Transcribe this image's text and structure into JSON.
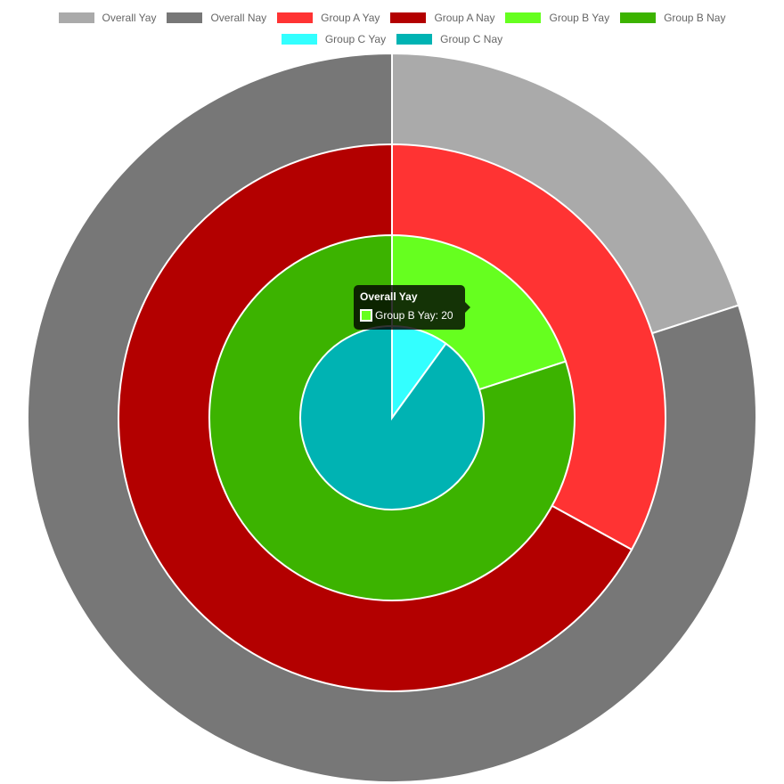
{
  "chart_data": {
    "type": "pie",
    "legend_position": "top",
    "legend": [
      {
        "label": "Overall Yay",
        "color": "#aaaaaa"
      },
      {
        "label": "Overall Nay",
        "color": "#777777"
      },
      {
        "label": "Group A Yay",
        "color": "#ff3333"
      },
      {
        "label": "Group A Nay",
        "color": "#b30000"
      },
      {
        "label": "Group B Yay",
        "color": "#66ff1f"
      },
      {
        "label": "Group B Nay",
        "color": "#3cb300"
      },
      {
        "label": "Group C Yay",
        "color": "#33ffff"
      },
      {
        "label": "Group C Nay",
        "color": "#00b3b3"
      }
    ],
    "rings": [
      {
        "values": [
          20,
          80
        ],
        "colors": [
          "#aaaaaa",
          "#777777"
        ],
        "labels": [
          "Overall Yay",
          "Overall Nay"
        ]
      },
      {
        "values": [
          33,
          67
        ],
        "colors": [
          "#ff3333",
          "#b30000"
        ],
        "labels": [
          "Group A Yay",
          "Group A Nay"
        ]
      },
      {
        "values": [
          20,
          80
        ],
        "colors": [
          "#66ff1f",
          "#3cb300"
        ],
        "labels": [
          "Group B Yay",
          "Group B Nay"
        ]
      },
      {
        "values": [
          10,
          90
        ],
        "colors": [
          "#33ffff",
          "#00b3b3"
        ],
        "labels": [
          "Group C Yay",
          "Group C Nay"
        ]
      }
    ]
  },
  "tooltip": {
    "title": "Overall Yay",
    "body": "Group B Yay: 20",
    "swatch_color": "#66ff1f"
  }
}
